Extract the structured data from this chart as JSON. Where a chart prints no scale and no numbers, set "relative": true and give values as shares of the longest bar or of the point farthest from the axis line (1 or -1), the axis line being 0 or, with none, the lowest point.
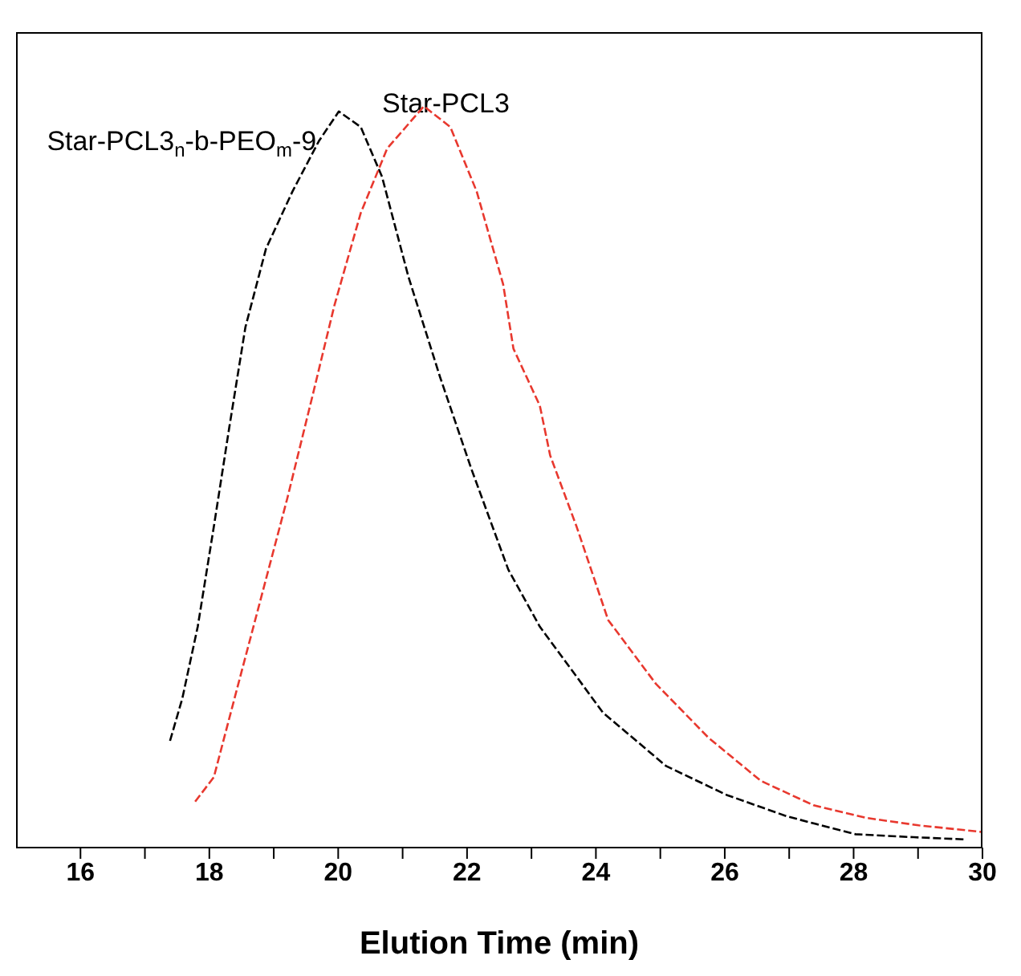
{
  "chart_data": {
    "type": "line",
    "xlabel": "Elution Time (min)",
    "relative": true,
    "legend": false,
    "grid": false,
    "marker": "none",
    "line_style": "dashed",
    "xlim": [
      15,
      30
    ],
    "xticks": [
      16,
      {
        "value": 17,
        "label": null
      },
      18,
      {
        "value": 19,
        "label": null
      },
      20,
      {
        "value": 21,
        "label": null
      },
      22,
      {
        "value": 23,
        "label": null
      },
      24,
      {
        "value": 25,
        "label": null
      },
      26,
      {
        "value": 27,
        "label": null
      },
      28,
      {
        "value": 29,
        "label": null
      },
      30
    ],
    "series": [
      {
        "name": "Star-PCL3$_{n}$-b-PEO$_{m}$-9",
        "color": "#000000",
        "x": [
          17.39,
          17.58,
          17.82,
          18.07,
          18.31,
          18.56,
          18.88,
          19.29,
          19.7,
          20.01,
          20.35,
          20.68,
          21.09,
          21.58,
          22.07,
          22.64,
          23.13,
          24.11,
          25.09,
          26.03,
          26.97,
          28.03,
          28.93,
          29.75
        ],
        "values": [
          0.144,
          0.201,
          0.298,
          0.433,
          0.567,
          0.702,
          0.808,
          0.885,
          0.953,
          0.993,
          0.972,
          0.905,
          0.77,
          0.635,
          0.51,
          0.375,
          0.298,
          0.182,
          0.11,
          0.071,
          0.042,
          0.018,
          0.014,
          0.011
        ]
      },
      {
        "name": "Star-PCL3",
        "color": "#e8382e",
        "x": [
          17.78,
          18.07,
          18.39,
          18.8,
          19.21,
          19.62,
          19.94,
          20.35,
          20.76,
          21.33,
          21.74,
          22.15,
          22.56,
          22.72,
          23.13,
          23.29,
          23.7,
          24.19,
          24.93,
          25.75,
          26.56,
          27.38,
          28.2,
          29.01,
          30.0
        ],
        "values": [
          0.062,
          0.095,
          0.201,
          0.336,
          0.471,
          0.616,
          0.731,
          0.856,
          0.943,
          1.0,
          0.972,
          0.885,
          0.76,
          0.673,
          0.596,
          0.529,
          0.433,
          0.307,
          0.221,
          0.148,
          0.09,
          0.057,
          0.04,
          0.03,
          0.021
        ]
      }
    ]
  }
}
